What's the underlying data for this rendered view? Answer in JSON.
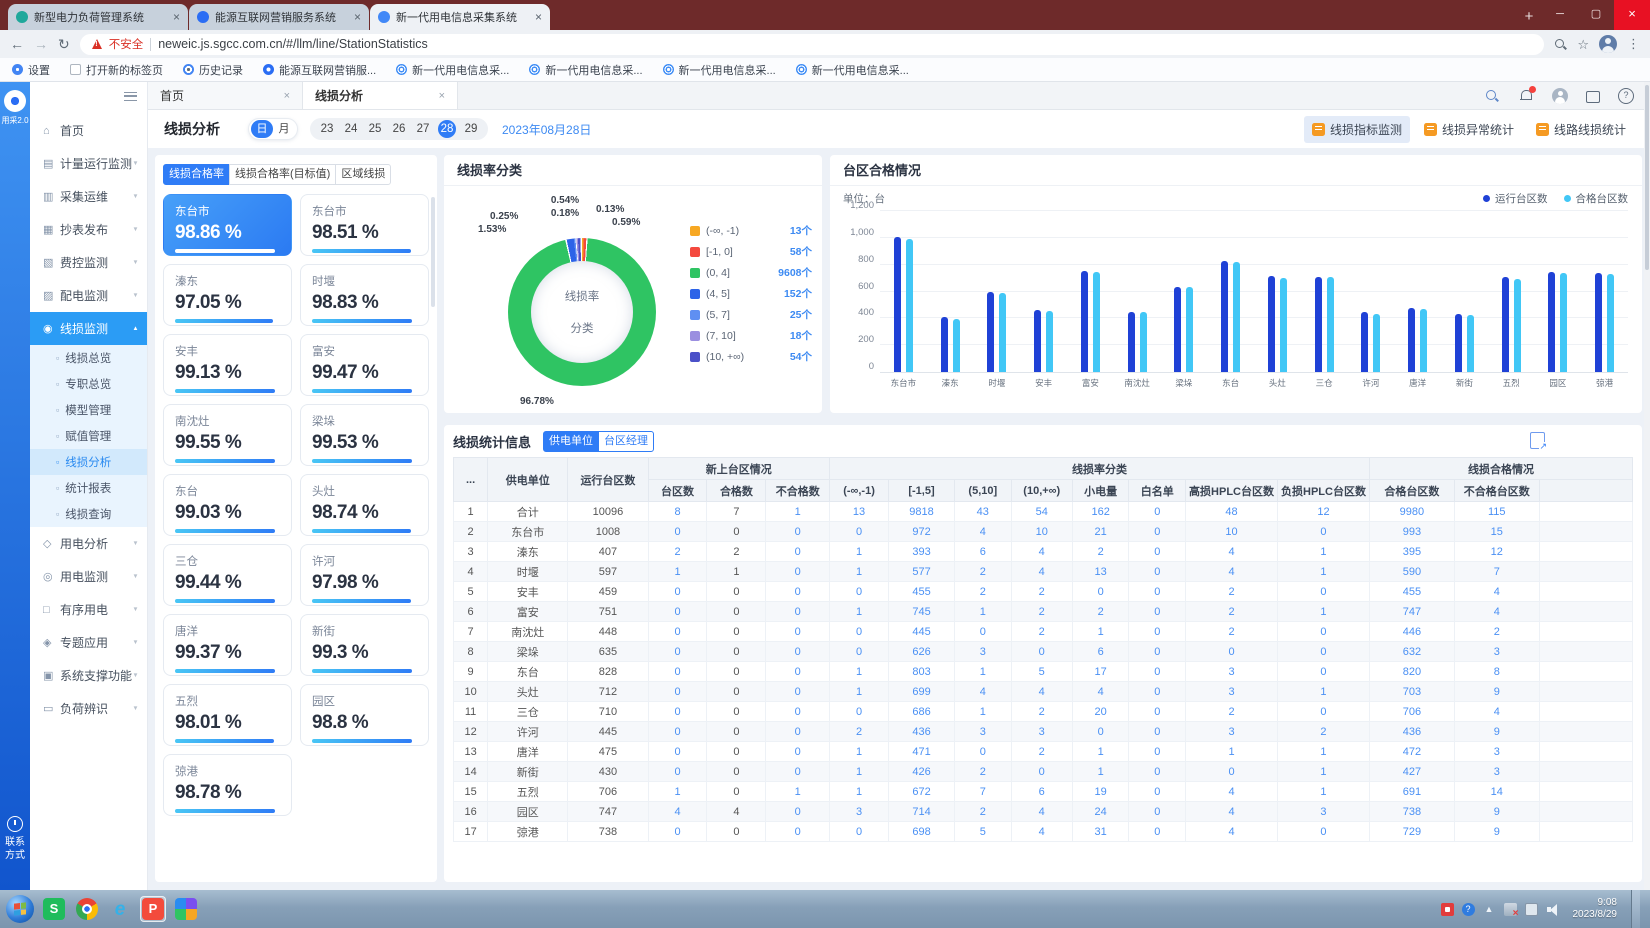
{
  "browser": {
    "tabs": [
      {
        "title": "新型电力负荷管理系统",
        "favicon_color": "#1fa89b",
        "active": false
      },
      {
        "title": "能源互联网营销服务系统",
        "favicon_color": "#2a6df4",
        "active": false
      },
      {
        "title": "新一代用电信息采集系统",
        "favicon_color": "#4188f7",
        "active": true
      }
    ],
    "security_label": "不安全",
    "url": "neweic.js.sgcc.com.cn/#/llm/line/StationStatistics",
    "bookmarks": [
      {
        "label": "设置",
        "icon": "gear"
      },
      {
        "label": "打开新的标签页",
        "icon": "page"
      },
      {
        "label": "历史记录",
        "icon": "clock"
      },
      {
        "label": "能源互联网营销服...",
        "icon": "ring"
      },
      {
        "label": "新一代用电信息采...",
        "icon": "globe"
      },
      {
        "label": "新一代用电信息采...",
        "icon": "globe"
      },
      {
        "label": "新一代用电信息采...",
        "icon": "globe"
      },
      {
        "label": "新一代用电信息采...",
        "icon": "globe"
      }
    ]
  },
  "rail": {
    "logo_text": "用采2.0",
    "contact_lines": [
      "联系",
      "方式"
    ]
  },
  "sidebar": {
    "items": [
      {
        "label": "首页",
        "icon": "home",
        "type": "leaf"
      },
      {
        "label": "计量运行监测",
        "icon": "metering",
        "type": "group"
      },
      {
        "label": "采集运维",
        "icon": "collection",
        "type": "group"
      },
      {
        "label": "抄表发布",
        "icon": "meter-reading",
        "type": "group"
      },
      {
        "label": "费控监测",
        "icon": "fee-control",
        "type": "group"
      },
      {
        "label": "配电监测",
        "icon": "distribution",
        "type": "group"
      },
      {
        "label": "线损监测",
        "icon": "line-loss",
        "type": "group",
        "active": true,
        "expanded": true,
        "children": [
          {
            "label": "线损总览"
          },
          {
            "label": "专职总览"
          },
          {
            "label": "模型管理"
          },
          {
            "label": "赋值管理"
          },
          {
            "label": "线损分析",
            "active": true
          },
          {
            "label": "统计报表"
          },
          {
            "label": "线损查询"
          }
        ]
      },
      {
        "label": "用电分析",
        "icon": "usage-analysis",
        "type": "group"
      },
      {
        "label": "用电监测",
        "icon": "usage-monitor",
        "type": "group"
      },
      {
        "label": "有序用电",
        "icon": "orderly-usage",
        "type": "group"
      },
      {
        "label": "专题应用",
        "icon": "special-apps",
        "type": "group"
      },
      {
        "label": "系统支撑功能",
        "icon": "system-support",
        "type": "group"
      },
      {
        "label": "负荷辨识",
        "icon": "load-identify",
        "type": "group"
      }
    ]
  },
  "workspace": {
    "tabs": [
      {
        "label": "首页",
        "active": false
      },
      {
        "label": "线损分析",
        "active": true
      }
    ],
    "header_icons": [
      "search",
      "notifications",
      "user",
      "fullscreen",
      "help"
    ]
  },
  "toolbar": {
    "title": "线损分析",
    "period_options": [
      {
        "label": "日",
        "selected": true
      },
      {
        "label": "月",
        "selected": false
      }
    ],
    "days": [
      {
        "label": "23"
      },
      {
        "label": "24"
      },
      {
        "label": "25"
      },
      {
        "label": "26"
      },
      {
        "label": "27"
      },
      {
        "label": "28",
        "selected": true
      },
      {
        "label": "29"
      }
    ],
    "current_date": "2023年08月28日",
    "actions": [
      {
        "label": "线损指标监测",
        "active": true
      },
      {
        "label": "线损异常统计",
        "active": false
      },
      {
        "label": "线路线损统计",
        "active": false
      }
    ]
  },
  "rate_panel": {
    "tabs": [
      {
        "label": "线损合格率",
        "active": true
      },
      {
        "label": "线损合格率(目标值)",
        "active": false
      },
      {
        "label": "区域线损",
        "active": false
      }
    ],
    "cards": [
      {
        "name": "东台市",
        "value": "98.86 %",
        "selected": true
      },
      {
        "name": "东台市",
        "value": "98.51 %"
      },
      {
        "name": "溱东",
        "value": "97.05 %"
      },
      {
        "name": "时堰",
        "value": "98.83 %"
      },
      {
        "name": "安丰",
        "value": "99.13 %"
      },
      {
        "name": "富安",
        "value": "99.47 %"
      },
      {
        "name": "南沈灶",
        "value": "99.55 %"
      },
      {
        "name": "梁垛",
        "value": "99.53 %"
      },
      {
        "name": "东台",
        "value": "99.03 %"
      },
      {
        "name": "头灶",
        "value": "98.74 %"
      },
      {
        "name": "三仓",
        "value": "99.44 %"
      },
      {
        "name": "许河",
        "value": "97.98 %"
      },
      {
        "name": "唐洋",
        "value": "99.37 %"
      },
      {
        "name": "新街",
        "value": "99.3 %"
      },
      {
        "name": "五烈",
        "value": "98.01 %"
      },
      {
        "name": "园区",
        "value": "98.8 %"
      },
      {
        "name": "弶港",
        "value": "98.78 %"
      }
    ]
  },
  "chart_data": [
    {
      "type": "pie",
      "title": "线损率分类",
      "center_label_lines": [
        "线损率",
        "分类"
      ],
      "unit_suffix": "个",
      "legend_position": "right",
      "slices": [
        {
          "label": "(-∞, -1)",
          "value": 13,
          "percent": "0.13%",
          "color": "#f7a823"
        },
        {
          "label": "[-1, 0]",
          "value": 58,
          "percent": "0.59%",
          "color": "#f4493e"
        },
        {
          "label": "(0, 4]",
          "value": 9608,
          "percent": "96.78%",
          "color": "#2fc463"
        },
        {
          "label": "(4, 5]",
          "value": 152,
          "percent": "1.53%",
          "color": "#2c63e8"
        },
        {
          "label": "(5, 7]",
          "value": 25,
          "percent": "0.25%",
          "color": "#5f8ff2"
        },
        {
          "label": "(7, 10]",
          "value": 18,
          "percent": "0.18%",
          "color": "#9b8fe0"
        },
        {
          "label": "(10, +∞)",
          "value": 54,
          "percent": "0.54%",
          "color": "#4a50c8"
        }
      ],
      "callouts": [
        {
          "lines": [
            "0.54%",
            "0.18%"
          ],
          "placement": "top"
        },
        {
          "lines": [
            "0.13%",
            "0.59%"
          ],
          "placement": "top-right"
        },
        {
          "lines": [
            "0.25%",
            "1.53%"
          ],
          "placement": "left"
        },
        {
          "lines": [
            "96.78%"
          ],
          "placement": "bottom"
        }
      ]
    },
    {
      "type": "bar",
      "title": "台区合格情况",
      "unit_label": "单位：台",
      "categories": [
        "东台市",
        "溱东",
        "时堰",
        "安丰",
        "富安",
        "南沈灶",
        "梁垛",
        "东台",
        "头灶",
        "三仓",
        "许河",
        "唐洋",
        "新街",
        "五烈",
        "园区",
        "弶港"
      ],
      "series": [
        {
          "name": "运行台区数",
          "color": "#1f41d6",
          "values": [
            1008,
            407,
            597,
            459,
            751,
            448,
            635,
            828,
            712,
            710,
            445,
            475,
            430,
            706,
            747,
            738
          ]
        },
        {
          "name": "合格台区数",
          "color": "#41c7f6",
          "values": [
            993,
            395,
            590,
            455,
            747,
            446,
            632,
            820,
            703,
            706,
            436,
            472,
            427,
            691,
            738,
            729
          ]
        }
      ],
      "ylim": [
        0,
        1200
      ],
      "yticks": [
        "0",
        "200",
        "400",
        "600",
        "800",
        "1,000",
        "1,200"
      ],
      "grid": true,
      "legend_position": "top-right"
    }
  ],
  "stats_table": {
    "title": "线损统计信息",
    "view_options": [
      {
        "label": "供电单位",
        "active": true
      },
      {
        "label": "台区经理",
        "active": false
      }
    ],
    "fixed_columns": [
      "...",
      "供电单位",
      "运行台区数"
    ],
    "groups": [
      {
        "label": "新上台区情况",
        "span": 3
      },
      {
        "label": "线损率分类",
        "span": 8
      },
      {
        "label": "线损合格情况",
        "span": 2
      }
    ],
    "sub_columns": [
      "台区数",
      "合格数",
      "不合格数",
      "(-∞,-1)",
      "[-1,5]",
      "(5,10]",
      "(10,+∞)",
      "小电量",
      "白名单",
      "高损HPLC台区数",
      "负损HPLC台区数",
      "合格台区数",
      "不合格台区数"
    ],
    "rows": [
      [
        "1",
        "合计",
        "10096",
        "8",
        "7",
        "1",
        "13",
        "9818",
        "43",
        "54",
        "162",
        "0",
        "48",
        "12",
        "9980",
        "115"
      ],
      [
        "2",
        "东台市",
        "1008",
        "0",
        "0",
        "0",
        "0",
        "972",
        "4",
        "10",
        "21",
        "0",
        "10",
        "0",
        "993",
        "15"
      ],
      [
        "3",
        "溱东",
        "407",
        "2",
        "2",
        "0",
        "1",
        "393",
        "6",
        "4",
        "2",
        "0",
        "4",
        "1",
        "395",
        "12"
      ],
      [
        "4",
        "时堰",
        "597",
        "1",
        "1",
        "0",
        "1",
        "577",
        "2",
        "4",
        "13",
        "0",
        "4",
        "1",
        "590",
        "7"
      ],
      [
        "5",
        "安丰",
        "459",
        "0",
        "0",
        "0",
        "0",
        "455",
        "2",
        "2",
        "0",
        "0",
        "2",
        "0",
        "455",
        "4"
      ],
      [
        "6",
        "富安",
        "751",
        "0",
        "0",
        "0",
        "1",
        "745",
        "1",
        "2",
        "2",
        "0",
        "2",
        "1",
        "747",
        "4"
      ],
      [
        "7",
        "南沈灶",
        "448",
        "0",
        "0",
        "0",
        "0",
        "445",
        "0",
        "2",
        "1",
        "0",
        "2",
        "0",
        "446",
        "2"
      ],
      [
        "8",
        "梁垛",
        "635",
        "0",
        "0",
        "0",
        "0",
        "626",
        "3",
        "0",
        "6",
        "0",
        "0",
        "0",
        "632",
        "3"
      ],
      [
        "9",
        "东台",
        "828",
        "0",
        "0",
        "0",
        "1",
        "803",
        "1",
        "5",
        "17",
        "0",
        "3",
        "0",
        "820",
        "8"
      ],
      [
        "10",
        "头灶",
        "712",
        "0",
        "0",
        "0",
        "1",
        "699",
        "4",
        "4",
        "4",
        "0",
        "3",
        "1",
        "703",
        "9"
      ],
      [
        "11",
        "三仓",
        "710",
        "0",
        "0",
        "0",
        "0",
        "686",
        "1",
        "2",
        "20",
        "0",
        "2",
        "0",
        "706",
        "4"
      ],
      [
        "12",
        "许河",
        "445",
        "0",
        "0",
        "0",
        "2",
        "436",
        "3",
        "3",
        "0",
        "0",
        "3",
        "2",
        "436",
        "9"
      ],
      [
        "13",
        "唐洋",
        "475",
        "0",
        "0",
        "0",
        "1",
        "471",
        "0",
        "2",
        "1",
        "0",
        "1",
        "1",
        "472",
        "3"
      ],
      [
        "14",
        "新街",
        "430",
        "0",
        "0",
        "0",
        "1",
        "426",
        "2",
        "0",
        "1",
        "0",
        "0",
        "1",
        "427",
        "3"
      ],
      [
        "15",
        "五烈",
        "706",
        "1",
        "0",
        "1",
        "1",
        "672",
        "7",
        "6",
        "19",
        "0",
        "4",
        "1",
        "691",
        "14"
      ],
      [
        "16",
        "园区",
        "747",
        "4",
        "4",
        "0",
        "3",
        "714",
        "2",
        "4",
        "24",
        "0",
        "4",
        "3",
        "738",
        "9"
      ],
      [
        "17",
        "弶港",
        "738",
        "0",
        "0",
        "0",
        "0",
        "698",
        "5",
        "4",
        "31",
        "0",
        "4",
        "0",
        "729",
        "9"
      ]
    ]
  },
  "taskbar": {
    "time": "9:08",
    "date": "2023/8/29",
    "apps": [
      {
        "name": "start"
      },
      {
        "name": "wps"
      },
      {
        "name": "chrome"
      },
      {
        "name": "ie"
      },
      {
        "name": "wps-presentation",
        "active": true
      },
      {
        "name": "design-tool"
      }
    ],
    "tray_icons": [
      "pinned-red",
      "help",
      "hidden-icons",
      "network-error",
      "display",
      "volume"
    ]
  }
}
